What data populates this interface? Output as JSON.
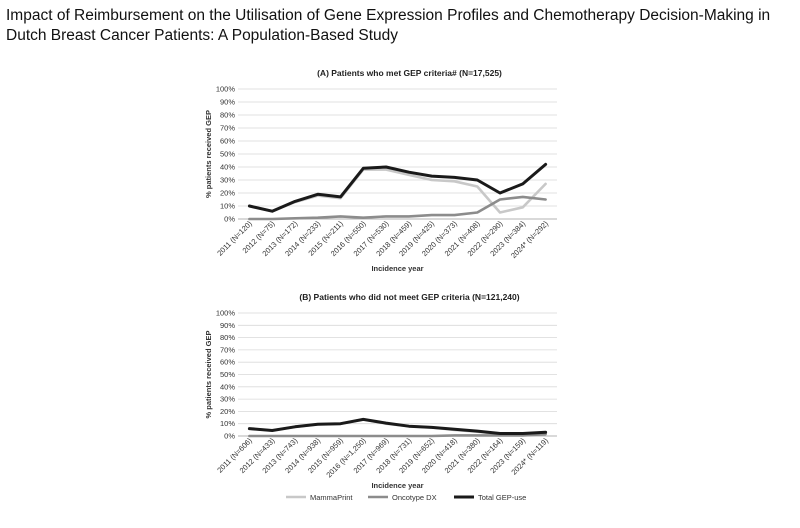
{
  "title": "Impact of Reimbursement on the Utilisation of Gene Expression Profiles and Chemotherapy Decision-Making in Dutch Breast Cancer Patients: A Population-Based Study",
  "colors": {
    "MammaPrint": "#c8c8c8",
    "Oncotype DX": "#8c8c8c",
    "Total GEP-use": "#1a1a1a",
    "gridline": "#d9d9d9"
  },
  "legend": {
    "position": "bottom-center",
    "items": [
      "MammaPrint",
      "Oncotype DX",
      "Total GEP-use"
    ]
  },
  "chart_data": [
    {
      "type": "line",
      "title": "(A) Patients who met GEP criteria# (N=17,525)",
      "xlabel": "Incidence year",
      "ylabel": "% patients received GEP",
      "ylim": [
        0,
        100
      ],
      "yticks": [
        "0%",
        "10%",
        "20%",
        "30%",
        "40%",
        "50%",
        "60%",
        "70%",
        "80%",
        "90%",
        "100%"
      ],
      "grid": true,
      "categories": [
        "2011 (N=120)",
        "2012 (N=75)",
        "2013 (N=172)",
        "2014 (N=233)",
        "2015 (N=211)",
        "2016 (N=550)",
        "2017 (N=530)",
        "2018 (N=459)",
        "2019 (N=425)",
        "2020 (N=373)",
        "2021 (N=408)",
        "2022 (N=290)",
        "2023 (N=384)",
        "2024* (N=292)"
      ],
      "series": [
        {
          "name": "MammaPrint",
          "values": [
            10,
            6,
            13,
            18,
            16,
            38,
            38,
            34,
            30,
            29,
            25,
            5,
            9,
            27
          ]
        },
        {
          "name": "Oncotype DX",
          "values": [
            0,
            0,
            0.5,
            1,
            2,
            1,
            2,
            2,
            3,
            3,
            5,
            15,
            17,
            15
          ]
        },
        {
          "name": "Total GEP-use",
          "values": [
            10,
            6,
            13.5,
            19,
            17,
            39,
            40,
            36,
            33,
            32,
            30,
            20,
            27,
            42
          ]
        }
      ]
    },
    {
      "type": "line",
      "title": "(B) Patients who did not meet GEP criteria (N=121,240)",
      "xlabel": "Incidence year",
      "ylabel": "% patients received GEP",
      "ylim": [
        0,
        100
      ],
      "yticks": [
        "0%",
        "10%",
        "20%",
        "30%",
        "40%",
        "50%",
        "60%",
        "70%",
        "80%",
        "90%",
        "100%"
      ],
      "grid": true,
      "categories": [
        "2011 (N=606)",
        "2012 (N=433)",
        "2013 (N=743)",
        "2014 (N=938)",
        "2015 (N=959)",
        "2016 (N=1,250)",
        "2017 (N=969)",
        "2018 (N=731)",
        "2019 (N=652)",
        "2020 (N=418)",
        "2021 (N=380)",
        "2022 (N=164)",
        "2023 (N=159)",
        "2024* (N=119)"
      ],
      "series": [
        {
          "name": "MammaPrint",
          "values": [
            6,
            4.5,
            7.5,
            9.5,
            10,
            13.5,
            10,
            8,
            7,
            5,
            3.5,
            1.5,
            2,
            2
          ]
        },
        {
          "name": "Oncotype DX",
          "values": [
            0,
            0,
            0,
            0,
            0,
            0,
            0,
            0,
            0,
            0.5,
            0.5,
            0.5,
            0.5,
            1.5
          ]
        },
        {
          "name": "Total GEP-use",
          "values": [
            6,
            4.5,
            7.5,
            9.5,
            10,
            13.5,
            10.5,
            8,
            7,
            5.5,
            4,
            2,
            2,
            3
          ]
        }
      ]
    }
  ]
}
